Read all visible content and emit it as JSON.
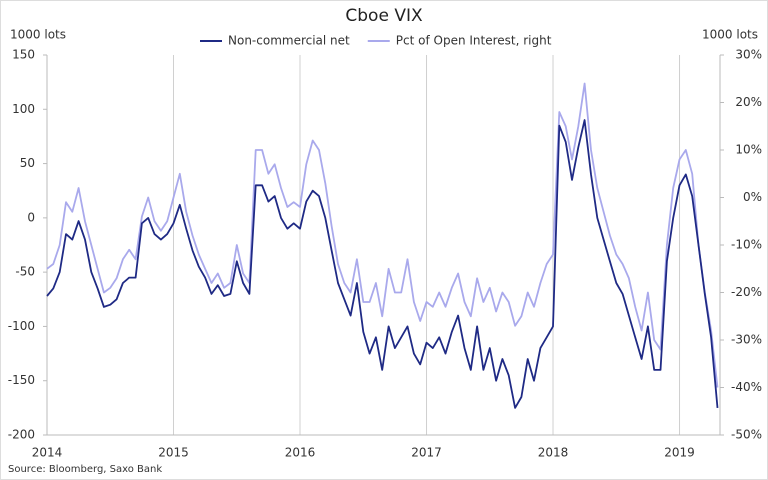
{
  "chart_data": {
    "type": "line",
    "title": "Cboe VIX",
    "y_label": "1000 lots",
    "y2_label": "1000  lots",
    "source": "Source: Bloomberg, Saxo Bank",
    "x": [
      2014,
      2014.05,
      2014.1,
      2014.15,
      2014.2,
      2014.25,
      2014.3,
      2014.35,
      2014.4,
      2014.45,
      2014.5,
      2014.55,
      2014.6,
      2014.65,
      2014.7,
      2014.75,
      2014.8,
      2014.85,
      2014.9,
      2014.95,
      2015,
      2015.05,
      2015.1,
      2015.15,
      2015.2,
      2015.25,
      2015.3,
      2015.35,
      2015.4,
      2015.45,
      2015.5,
      2015.55,
      2015.6,
      2015.65,
      2015.7,
      2015.75,
      2015.8,
      2015.85,
      2015.9,
      2015.95,
      2016,
      2016.05,
      2016.1,
      2016.15,
      2016.2,
      2016.25,
      2016.3,
      2016.35,
      2016.4,
      2016.45,
      2016.5,
      2016.55,
      2016.6,
      2016.65,
      2016.7,
      2016.75,
      2016.8,
      2016.85,
      2016.9,
      2016.95,
      2017,
      2017.05,
      2017.1,
      2017.15,
      2017.2,
      2017.25,
      2017.3,
      2017.35,
      2017.4,
      2017.45,
      2017.5,
      2017.55,
      2017.6,
      2017.65,
      2017.7,
      2017.75,
      2017.8,
      2017.85,
      2017.9,
      2017.95,
      2018,
      2018.05,
      2018.1,
      2018.15,
      2018.2,
      2018.25,
      2018.3,
      2018.35,
      2018.4,
      2018.45,
      2018.5,
      2018.55,
      2018.6,
      2018.65,
      2018.7,
      2018.75,
      2018.8,
      2018.85,
      2018.9,
      2018.95,
      2019,
      2019.05,
      2019.1,
      2019.15,
      2019.2,
      2019.25,
      2019.3
    ],
    "series": [
      {
        "name": "Non-commercial net",
        "color": "#1f2a85",
        "values": [
          -72,
          -65,
          -50,
          -15,
          -20,
          -3,
          -20,
          -50,
          -65,
          -82,
          -80,
          -75,
          -60,
          -55,
          -55,
          -5,
          0,
          -15,
          -20,
          -15,
          -5,
          12,
          -10,
          -30,
          -45,
          -55,
          -70,
          -62,
          -72,
          -70,
          -40,
          -60,
          -70,
          30,
          30,
          15,
          20,
          0,
          -10,
          -5,
          -10,
          15,
          25,
          20,
          0,
          -30,
          -60,
          -75,
          -90,
          -60,
          -105,
          -125,
          -110,
          -140,
          -100,
          -120,
          -110,
          -100,
          -125,
          -135,
          -115,
          -120,
          -110,
          -125,
          -105,
          -90,
          -120,
          -140,
          -100,
          -140,
          -120,
          -150,
          -130,
          -145,
          -175,
          -165,
          -130,
          -150,
          -120,
          -110,
          -100,
          85,
          70,
          35,
          65,
          90,
          40,
          0,
          -20,
          -40,
          -60,
          -70,
          -90,
          -110,
          -130,
          -100,
          -140,
          -140,
          -40,
          0,
          30,
          40,
          20,
          -25,
          -70,
          -110,
          -175
        ]
      },
      {
        "name": "Pct of Open Interest, right",
        "color": "#a9a9ec",
        "axis": "y2",
        "values": [
          -15,
          -14,
          -10,
          -1,
          -3,
          2,
          -5,
          -10,
          -15,
          -20,
          -19,
          -17,
          -13,
          -11,
          -13,
          -4,
          0,
          -5,
          -7,
          -5,
          0,
          5,
          -3,
          -8,
          -12,
          -15,
          -18,
          -16,
          -19,
          -18,
          -10,
          -16,
          -18,
          10,
          10,
          5,
          7,
          2,
          -2,
          -1,
          -2,
          7,
          12,
          10,
          3,
          -6,
          -14,
          -18,
          -20,
          -13,
          -22,
          -22,
          -18,
          -25,
          -15,
          -20,
          -20,
          -13,
          -22,
          -26,
          -22,
          -23,
          -20,
          -23,
          -19,
          -16,
          -22,
          -25,
          -17,
          -22,
          -19,
          -24,
          -20,
          -22,
          -27,
          -25,
          -20,
          -23,
          -18,
          -14,
          -12,
          18,
          15,
          8,
          15,
          24,
          10,
          2,
          -3,
          -8,
          -12,
          -14,
          -17,
          -23,
          -28,
          -20,
          -30,
          -32,
          -10,
          2,
          8,
          10,
          5,
          -10,
          -20,
          -28,
          -40
        ]
      }
    ],
    "xlim": [
      2014,
      2019.32
    ],
    "xticks": [
      2014,
      2015,
      2016,
      2017,
      2018,
      2019
    ],
    "ylim": [
      -200,
      150
    ],
    "yticks": [
      -200,
      -150,
      -100,
      -50,
      0,
      50,
      100,
      150
    ],
    "y2lim": [
      -50,
      30
    ],
    "y2ticks": [
      {
        "value": -50,
        "label": "-50%"
      },
      {
        "value": -40,
        "label": "-40%"
      },
      {
        "value": -30,
        "label": "-30%"
      },
      {
        "value": -20,
        "label": "-20%"
      },
      {
        "value": -10,
        "label": "-10%"
      },
      {
        "value": 0,
        "label": "0%"
      },
      {
        "value": 10,
        "label": "10%"
      },
      {
        "value": 20,
        "label": "20%"
      },
      {
        "value": 30,
        "label": "30%"
      }
    ],
    "grid": "x",
    "legend": "top"
  }
}
